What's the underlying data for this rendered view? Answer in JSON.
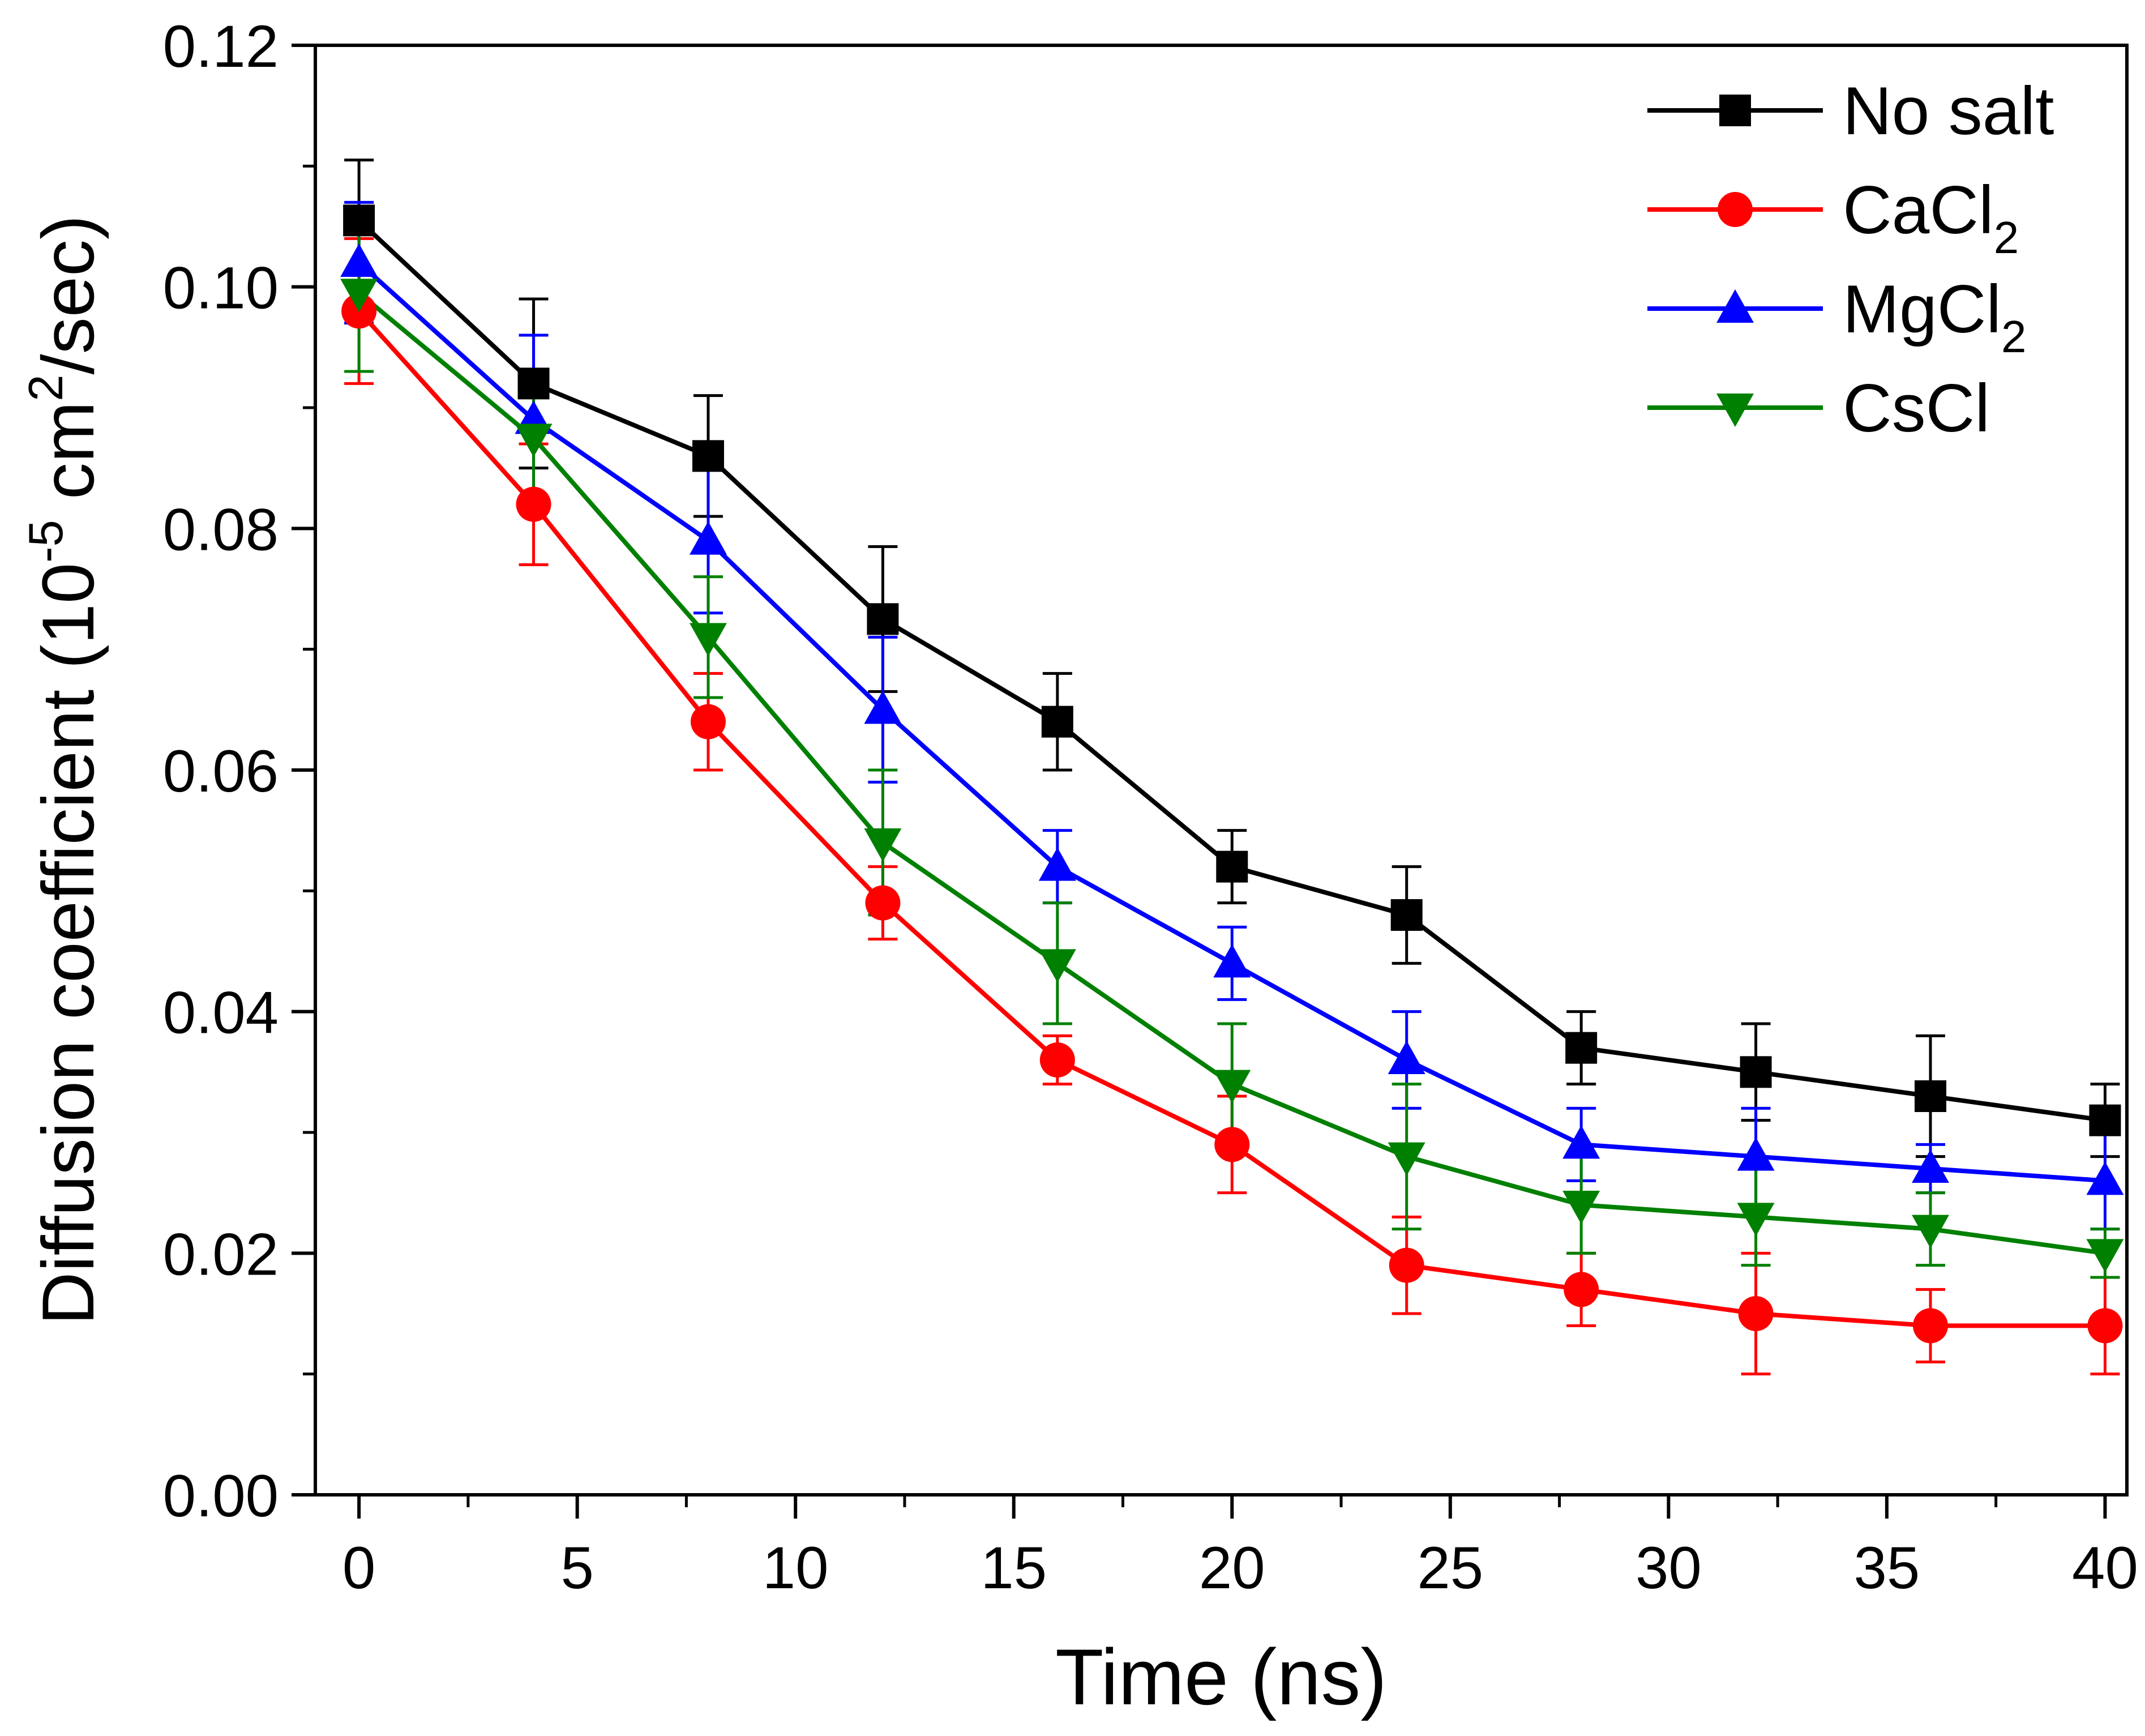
{
  "chart_data": {
    "type": "line",
    "xlabel": "Time (ns)",
    "ylabel": {
      "base": "Diffusion coefficient (10",
      "exp": "-5",
      "mid": " cm",
      "exp2": "2",
      "end": "/sec)"
    },
    "xlim": [
      -1,
      40.5
    ],
    "ylim": [
      0,
      0.12
    ],
    "x_ticks": [
      0,
      5,
      10,
      15,
      20,
      25,
      30,
      35,
      40
    ],
    "x_tick_labels": [
      "0",
      "5",
      "10",
      "15",
      "20",
      "25",
      "30",
      "35",
      "40"
    ],
    "y_ticks": [
      0,
      0.02,
      0.04,
      0.06,
      0.08,
      0.1,
      0.12
    ],
    "y_tick_labels": [
      "0.00",
      "0.02",
      "0.04",
      "0.06",
      "0.08",
      "0.10",
      "0.12"
    ],
    "x": [
      0,
      4,
      8,
      12,
      16,
      20,
      24,
      28,
      32,
      36,
      40
    ],
    "series": [
      {
        "name": "No salt",
        "sub": "",
        "color": "#000000",
        "marker": "square",
        "values": [
          0.1055,
          0.092,
          0.086,
          0.0725,
          0.064,
          0.052,
          0.048,
          0.037,
          0.035,
          0.033,
          0.031
        ],
        "errors": [
          0.005,
          0.007,
          0.005,
          0.006,
          0.004,
          0.003,
          0.004,
          0.003,
          0.004,
          0.005,
          0.003
        ]
      },
      {
        "name": "CaCl",
        "sub": "2",
        "color": "#ff0000",
        "marker": "circle",
        "values": [
          0.098,
          0.082,
          0.064,
          0.049,
          0.036,
          0.029,
          0.019,
          0.017,
          0.015,
          0.014,
          0.014
        ],
        "errors": [
          0.006,
          0.005,
          0.004,
          0.003,
          0.002,
          0.004,
          0.004,
          0.003,
          0.005,
          0.003,
          0.004
        ]
      },
      {
        "name": "MgCl",
        "sub": "2",
        "color": "#0000ff",
        "marker": "triangle-up",
        "values": [
          0.102,
          0.089,
          0.079,
          0.065,
          0.052,
          0.044,
          0.036,
          0.029,
          0.028,
          0.027,
          0.026
        ],
        "errors": [
          0.005,
          0.007,
          0.006,
          0.006,
          0.003,
          0.003,
          0.004,
          0.003,
          0.004,
          0.002,
          0.004
        ]
      },
      {
        "name": "CsCl",
        "sub": "",
        "color": "#008000",
        "marker": "triangle-down",
        "values": [
          0.0995,
          0.0875,
          0.071,
          0.054,
          0.044,
          0.034,
          0.028,
          0.024,
          0.023,
          0.022,
          0.02
        ],
        "errors": [
          0.0065,
          0.0055,
          0.005,
          0.006,
          0.005,
          0.005,
          0.006,
          0.004,
          0.004,
          0.003,
          0.002
        ]
      }
    ],
    "legend_position": "top-right"
  }
}
